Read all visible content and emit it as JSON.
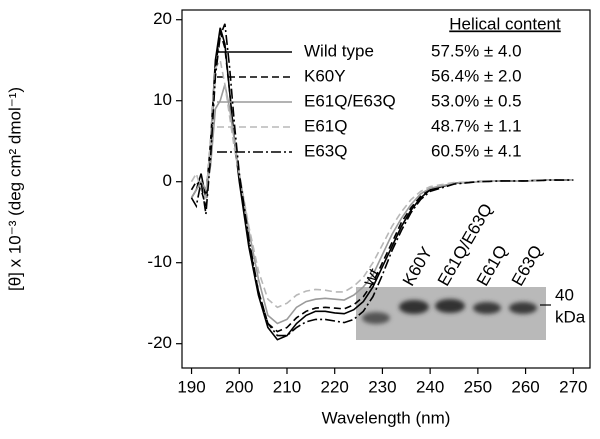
{
  "chart_data": {
    "type": "line",
    "x_label": "Wavelength (nm)",
    "y_label": "[θ] x 10⁻³ (deg cm² dmol⁻¹)",
    "legend_heading": "Helical content",
    "x": [
      190,
      191,
      192,
      193,
      194,
      195,
      196,
      197,
      198,
      199,
      200,
      202,
      204,
      206,
      208,
      210,
      212,
      214,
      216,
      218,
      220,
      222,
      224,
      226,
      228,
      230,
      232,
      234,
      236,
      238,
      240,
      245,
      250,
      255,
      260,
      265,
      270
    ],
    "series": [
      {
        "name": "Wild type",
        "helical_content": "57.5% ± 4.0",
        "color": "#000000",
        "linestyle": "solid",
        "values": [
          -2,
          -1,
          1,
          -2,
          5,
          15,
          19,
          17,
          11,
          5,
          0,
          -8,
          -14,
          -18,
          -19.5,
          -19,
          -17.5,
          -16.5,
          -16,
          -16,
          -16.2,
          -16.3,
          -15.8,
          -14.8,
          -13,
          -10.5,
          -8,
          -5.5,
          -3.5,
          -2,
          -1,
          -0.2,
          0,
          0.1,
          0.1,
          0.2,
          0.2
        ]
      },
      {
        "name": "K60Y",
        "helical_content": "56.4% ± 2.0",
        "color": "#000000",
        "linestyle": "dashed",
        "values": [
          -1,
          0,
          -1,
          -3,
          4,
          14,
          18.5,
          16.5,
          11,
          5,
          0.5,
          -7.5,
          -13.5,
          -17.5,
          -18.5,
          -18,
          -16.8,
          -16,
          -15.6,
          -15.5,
          -15.6,
          -15.7,
          -15.2,
          -14.2,
          -12.5,
          -10,
          -7.5,
          -5,
          -3.2,
          -1.8,
          -0.9,
          -0.2,
          0,
          0.1,
          0.1,
          0.2,
          0.2
        ]
      },
      {
        "name": "E61Q/E63Q",
        "helical_content": "53.0% ± 0.5",
        "color": "#9a9a9a",
        "linestyle": "solid",
        "values": [
          -2,
          -1,
          0,
          -1,
          2,
          9,
          10,
          12,
          9,
          5,
          1,
          -6,
          -12,
          -16.5,
          -17.5,
          -17,
          -15.5,
          -14.8,
          -14.5,
          -14.4,
          -14.5,
          -14.6,
          -14,
          -13,
          -11.5,
          -9,
          -6.5,
          -4.5,
          -2.8,
          -1.5,
          -0.8,
          -0.2,
          0,
          0.1,
          0.1,
          0.2,
          0.2
        ]
      },
      {
        "name": "E61Q",
        "helical_content": "48.7% ± 1.1",
        "color": "#b8b8b8",
        "linestyle": "dashed",
        "values": [
          0,
          1,
          -1,
          -2,
          5,
          14,
          15,
          12,
          8,
          4,
          1,
          -5.5,
          -11,
          -14.5,
          -15.5,
          -15,
          -14,
          -13.5,
          -13.3,
          -13.4,
          -13.6,
          -13.6,
          -12.9,
          -11.8,
          -10,
          -7.8,
          -5.5,
          -3.7,
          -2.2,
          -1.2,
          -0.6,
          -0.1,
          0,
          0.1,
          0.1,
          0.2,
          0.2
        ]
      },
      {
        "name": "E63Q",
        "helical_content": "60.5% ± 4.1",
        "color": "#000000",
        "linestyle": "dashdot",
        "values": [
          -2,
          -3,
          0,
          -4,
          3,
          13,
          18,
          19.5,
          14,
          7,
          1,
          -7,
          -13.5,
          -17.5,
          -19,
          -19,
          -18,
          -17.3,
          -17,
          -17,
          -17.2,
          -17.4,
          -17,
          -16,
          -14.2,
          -11.5,
          -8.5,
          -6,
          -3.8,
          -2.2,
          -1.2,
          -0.3,
          0,
          0.1,
          0.1,
          0.2,
          0.2
        ]
      }
    ],
    "xlim": [
      188,
      273.5
    ],
    "xticks": [
      190,
      200,
      210,
      220,
      230,
      240,
      250,
      260,
      270
    ],
    "ylim": [
      -23,
      21.2
    ],
    "yticks": [
      -20,
      -10,
      0,
      10,
      20
    ],
    "grid": false,
    "inset": {
      "lanes": [
        "wt",
        "K60Y",
        "E61Q/E63Q",
        "E61Q",
        "E63Q"
      ],
      "marker": "40",
      "marker_unit": "kDa"
    }
  }
}
